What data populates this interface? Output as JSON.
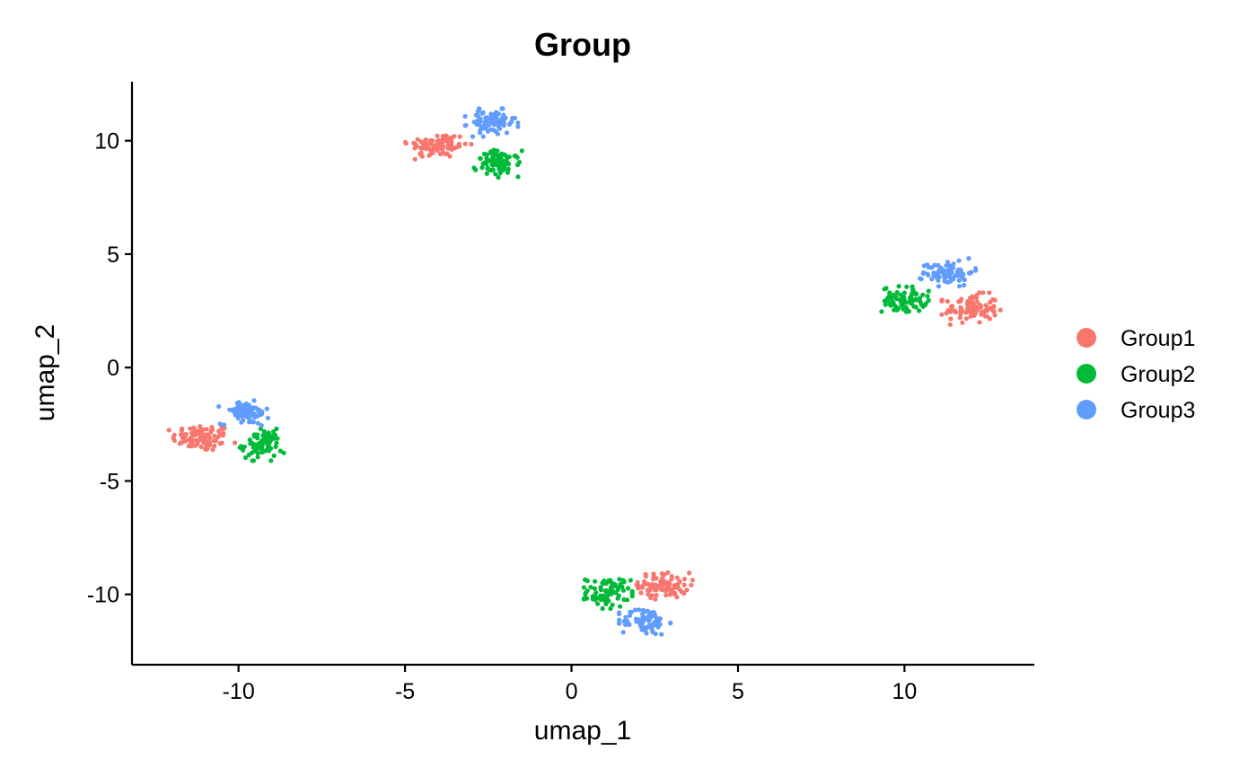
{
  "chart_data": {
    "type": "scatter",
    "title": "Group",
    "xlabel": "umap_1",
    "ylabel": "umap_2",
    "xlim": [
      -13.2,
      13.9
    ],
    "ylim": [
      -13.1,
      12.6
    ],
    "xticks": [
      -10,
      -5,
      0,
      5,
      10
    ],
    "yticks": [
      -10,
      -5,
      0,
      5,
      10
    ],
    "xtick_labels": [
      "-10",
      "-5",
      "0",
      "5",
      "10"
    ],
    "ytick_labels": [
      "-10",
      "-5",
      "0",
      "5",
      "10"
    ],
    "grid": false,
    "legend_placement": "right",
    "series": [
      {
        "name": "Group1",
        "color": "#F8766D",
        "clusters": [
          {
            "cx": -11.1,
            "cy": -3.1,
            "sx": 0.45,
            "sy": 0.3,
            "n": 90
          },
          {
            "cx": -4.0,
            "cy": 9.8,
            "sx": 0.45,
            "sy": 0.28,
            "n": 90
          },
          {
            "cx": 12.0,
            "cy": 2.6,
            "sx": 0.4,
            "sy": 0.32,
            "n": 90
          },
          {
            "cx": 2.8,
            "cy": -9.6,
            "sx": 0.38,
            "sy": 0.28,
            "n": 90
          }
        ]
      },
      {
        "name": "Group2",
        "color": "#00BA38",
        "clusters": [
          {
            "cx": -9.3,
            "cy": -3.4,
            "sx": 0.3,
            "sy": 0.32,
            "n": 80
          },
          {
            "cx": -2.2,
            "cy": 9.0,
            "sx": 0.33,
            "sy": 0.28,
            "n": 80
          },
          {
            "cx": 10.0,
            "cy": 3.0,
            "sx": 0.33,
            "sy": 0.28,
            "n": 80
          },
          {
            "cx": 1.1,
            "cy": -9.9,
            "sx": 0.33,
            "sy": 0.33,
            "n": 80
          }
        ]
      },
      {
        "name": "Group3",
        "color": "#619CFF",
        "clusters": [
          {
            "cx": -9.8,
            "cy": -2.0,
            "sx": 0.36,
            "sy": 0.25,
            "n": 80
          },
          {
            "cx": -2.4,
            "cy": 10.8,
            "sx": 0.36,
            "sy": 0.28,
            "n": 80
          },
          {
            "cx": 11.3,
            "cy": 4.2,
            "sx": 0.38,
            "sy": 0.28,
            "n": 80
          },
          {
            "cx": 2.2,
            "cy": -11.2,
            "sx": 0.35,
            "sy": 0.3,
            "n": 80
          }
        ]
      }
    ]
  }
}
